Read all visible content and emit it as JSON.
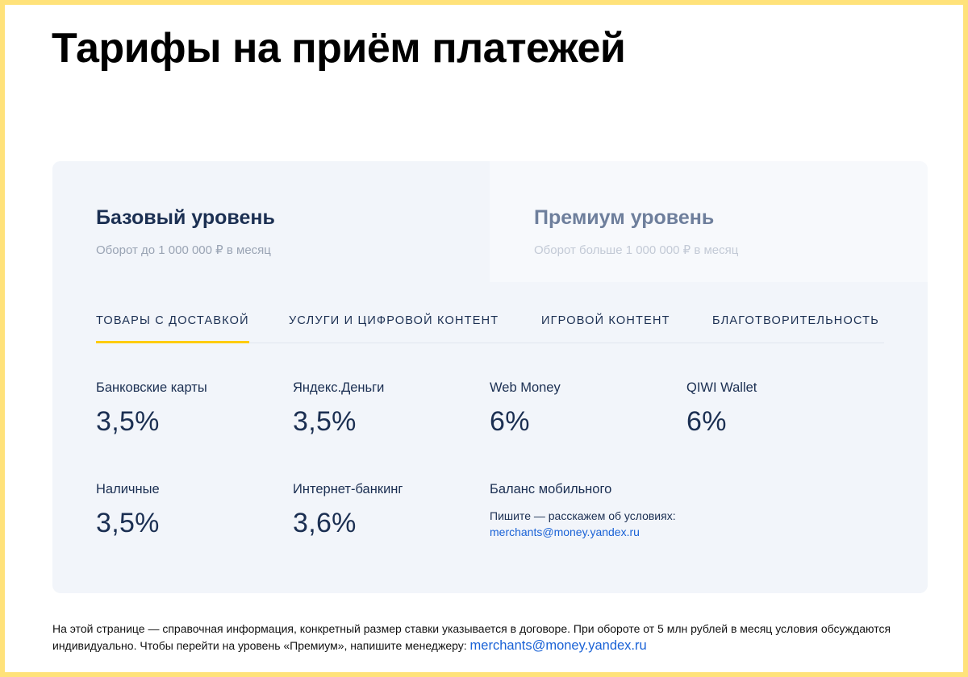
{
  "page": {
    "title": "Тарифы на приём платежей"
  },
  "tiers": [
    {
      "title": "Базовый уровень",
      "subtitle": "Оборот до 1 000 000 ₽ в месяц",
      "active": true
    },
    {
      "title": "Премиум уровень",
      "subtitle": "Оборот больше 1 000 000 ₽ в месяц",
      "active": false
    }
  ],
  "tabs": [
    {
      "label": "ТОВАРЫ С ДОСТАВКОЙ",
      "active": true
    },
    {
      "label": "УСЛУГИ И ЦИФРОВОЙ КОНТЕНТ",
      "active": false
    },
    {
      "label": "ИГРОВОЙ КОНТЕНТ",
      "active": false
    },
    {
      "label": "БЛАГОТВОРИТЕЛЬНОСТЬ",
      "active": false
    }
  ],
  "methods": [
    {
      "label": "Банковские карты",
      "rate": "3,5%"
    },
    {
      "label": "Яндекс.Деньги",
      "rate": "3,5%"
    },
    {
      "label": "Web Money",
      "rate": "6%"
    },
    {
      "label": "QIWI Wallet",
      "rate": "6%"
    },
    {
      "label": "Наличные",
      "rate": "3,5%"
    },
    {
      "label": "Интернет-банкинг",
      "rate": "3,6%"
    },
    {
      "label": "Баланс мобильного",
      "note": "Пишите — расскажем об условиях:",
      "link": "merchants@money.yandex.ru"
    }
  ],
  "footer": {
    "text": "На этой странице — справочная информация, конкретный размер ставки указывается в договоре. При обороте от 5 млн рублей в месяц условия обсуждаются индивидуально. Чтобы перейти на уровень «Премиум», напишите менеджеру:",
    "link": "merchants@money.yandex.ru"
  },
  "colors": {
    "frame": "#ffe27a",
    "accent": "#ffcc00",
    "text_dark": "#1b2f52",
    "link": "#1a62d6",
    "card_bg": "#f2f5fa"
  }
}
